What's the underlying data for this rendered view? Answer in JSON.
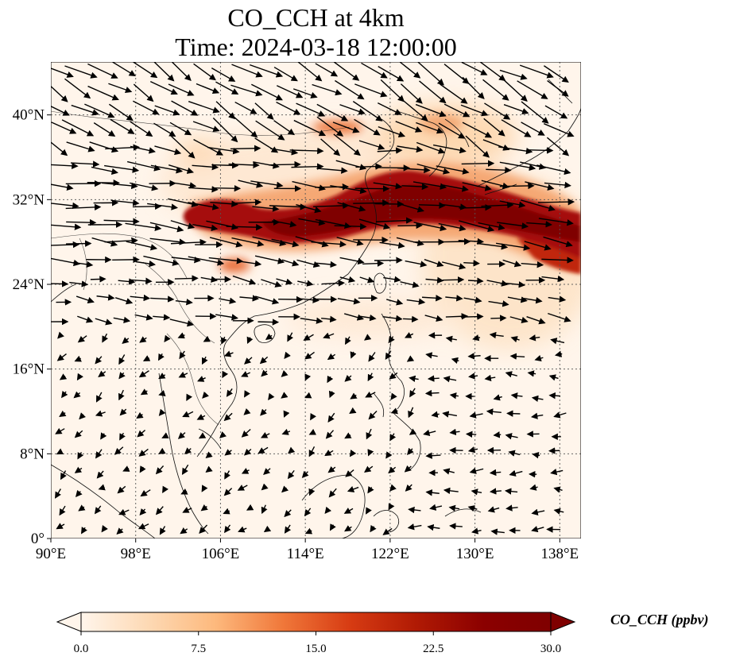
{
  "title": {
    "line1": "CO_CCH at 4km",
    "line2": "Time: 2024-03-18 12:00:00"
  },
  "map": {
    "lon_range": [
      90,
      140
    ],
    "lat_range": [
      0,
      45
    ],
    "lon_ticks": [
      {
        "value": 90,
        "label": "90°E"
      },
      {
        "value": 98,
        "label": "98°E"
      },
      {
        "value": 106,
        "label": "106°E"
      },
      {
        "value": 114,
        "label": "114°E"
      },
      {
        "value": 122,
        "label": "122°E"
      },
      {
        "value": 130,
        "label": "130°E"
      },
      {
        "value": 138,
        "label": "138°E"
      }
    ],
    "lat_ticks": [
      {
        "value": 0,
        "label": "0°"
      },
      {
        "value": 8,
        "label": "8°N"
      },
      {
        "value": 16,
        "label": "16°N"
      },
      {
        "value": 24,
        "label": "24°N"
      },
      {
        "value": 32,
        "label": "32°N"
      },
      {
        "value": 40,
        "label": "40°N"
      }
    ],
    "gridlines": true,
    "plume_color": "#8b0000"
  },
  "colorbar": {
    "label": "CO_CCH (ppbv)",
    "min": 0,
    "max": 30,
    "extend": "both",
    "ticks": [
      {
        "value": 0,
        "label": "0.0"
      },
      {
        "value": 7.5,
        "label": "7.5"
      },
      {
        "value": 15,
        "label": "15.0"
      },
      {
        "value": 22.5,
        "label": "22.5"
      },
      {
        "value": 30,
        "label": "30.0"
      }
    ],
    "colormap": [
      "#fff5eb",
      "#fdd9b4",
      "#fdb97d",
      "#f0783a",
      "#d73c13",
      "#b01a04",
      "#8b0000",
      "#7f0000"
    ]
  }
}
